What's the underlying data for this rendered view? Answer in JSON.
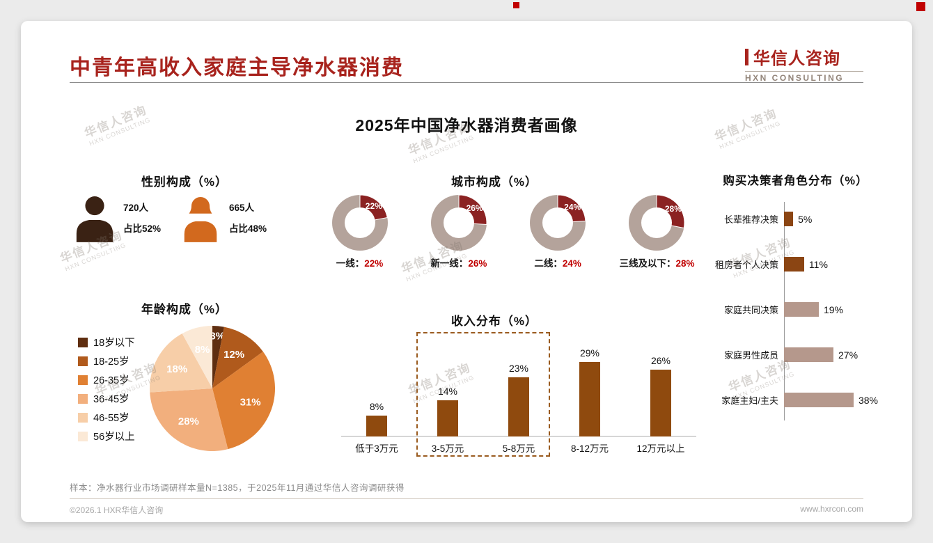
{
  "page": {
    "title": "中青年高收入家庭主导净水器消费",
    "main_title": "2025年中国净水器消费者画像",
    "logo": {
      "name": "华信人咨询",
      "sub": "HXN CONSULTING"
    },
    "watermark": {
      "line1": "华信人咨询",
      "line2": "HXN CONSULTING"
    },
    "sample_note": "样本：净水器行业市场调研样本量N=1385，于2025年11月通过华信人咨询调研获得",
    "footer": {
      "left": "©2026.1 HXR华信人咨询",
      "right": "www.hxrcon.com"
    }
  },
  "colors": {
    "title_red": "#A8231D",
    "value_red": "#C00000",
    "donut_rest": "#B4A39B",
    "donut_highlight": "#8B2222",
    "bar_brown": "#8F4A0E"
  },
  "chart_data": [
    {
      "name": "gender",
      "type": "pictogram",
      "title": "性别构成（%）",
      "items": [
        {
          "label": "男",
          "count": "720人",
          "share": "占比52%",
          "icon": "male-icon",
          "color": "#3A2214"
        },
        {
          "label": "女",
          "count": "665人",
          "share": "占比48%",
          "icon": "female-icon",
          "color": "#D2691E"
        }
      ]
    },
    {
      "name": "city",
      "type": "donut",
      "title": "城市构成（%）",
      "items": [
        {
          "label": "一线",
          "value": 22
        },
        {
          "label": "新一线",
          "value": 26
        },
        {
          "label": "二线",
          "value": 24
        },
        {
          "label": "三线及以下",
          "value": 28
        }
      ],
      "colors": {
        "highlight": "#8B2222",
        "rest": "#B4A39B"
      }
    },
    {
      "name": "age",
      "type": "pie",
      "title": "年龄构成（%）",
      "categories": [
        "18岁以下",
        "18-25岁",
        "26-35岁",
        "36-45岁",
        "46-55岁",
        "56岁以上"
      ],
      "values": [
        3,
        12,
        31,
        28,
        18,
        8
      ],
      "colors": [
        "#5F2E10",
        "#B05A1C",
        "#E08033",
        "#F2AF7D",
        "#F7CEA8",
        "#FBE9D6"
      ]
    },
    {
      "name": "income",
      "type": "bar",
      "title": "收入分布（%）",
      "categories": [
        "低于3万元",
        "3-5万元",
        "5-8万元",
        "8-12万元",
        "12万元以上"
      ],
      "values": [
        8,
        14,
        23,
        29,
        26
      ],
      "bar_color": "#8F4A0E",
      "highlight_range": [
        1,
        2
      ]
    },
    {
      "name": "decision",
      "type": "hbar",
      "title": "购买决策者角色分布（%）",
      "categories": [
        "长辈推荐决策",
        "租房者个人决策",
        "家庭共同决策",
        "家庭男性成员",
        "家庭主妇/主夫"
      ],
      "values": [
        5,
        11,
        19,
        27,
        38
      ],
      "colors": [
        "#8B4513",
        "#8B4513",
        "#B5988C",
        "#B5988C",
        "#B5988C"
      ]
    }
  ]
}
